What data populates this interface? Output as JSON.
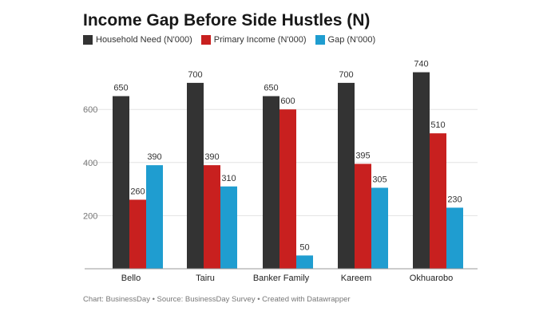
{
  "chart_data": {
    "type": "bar",
    "title": "Income Gap Before Side Hustles (N)",
    "categories": [
      "Bello",
      "Tairu",
      "Banker Family",
      "Kareem",
      "Okhuarobo"
    ],
    "series": [
      {
        "name": "Household Need (N'000)",
        "color": "#333333",
        "values": [
          650,
          700,
          650,
          700,
          740
        ]
      },
      {
        "name": "Primary Income (N'000)",
        "color": "#c8201f",
        "values": [
          260,
          390,
          600,
          395,
          510
        ]
      },
      {
        "name": "Gap (N'000)",
        "color": "#1f9dd0",
        "values": [
          390,
          310,
          50,
          305,
          230
        ]
      }
    ],
    "yticks": [
      200,
      400,
      600
    ],
    "ylim": [
      0,
      750
    ],
    "grid": true,
    "legend": "top-left"
  },
  "footer": "Chart: BusinessDay • Source: BusinessDay Survey • Created with Datawrapper"
}
